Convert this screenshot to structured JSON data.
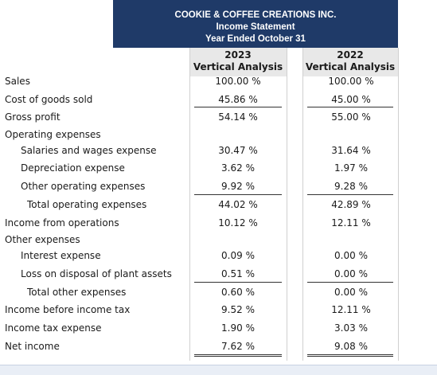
{
  "header": {
    "company": "COOKIE & COFFEE CREATIONS INC.",
    "statement": "Income Statement",
    "period": "Year Ended October 31"
  },
  "columns": [
    {
      "year": "2023",
      "label": "Vertical Analysis"
    },
    {
      "year": "2022",
      "label": "Vertical Analysis"
    }
  ],
  "rows": [
    {
      "label": "Sales",
      "v2023": "100.00 %",
      "v2022": "100.00 %"
    },
    {
      "label": "Cost of goods sold",
      "v2023": "45.86 %",
      "v2022": "45.00 %"
    },
    {
      "label": "Gross profit",
      "v2023": "54.14 %",
      "v2022": "55.00 %"
    },
    {
      "label": "Operating expenses",
      "v2023": "",
      "v2022": ""
    },
    {
      "label": "Salaries and wages expense",
      "v2023": "30.47 %",
      "v2022": "31.64 %"
    },
    {
      "label": "Depreciation expense",
      "v2023": "3.62 %",
      "v2022": "1.97 %"
    },
    {
      "label": "Other operating expenses",
      "v2023": "9.92 %",
      "v2022": "9.28 %"
    },
    {
      "label": "Total operating expenses",
      "v2023": "44.02 %",
      "v2022": "42.89 %"
    },
    {
      "label": "Income from operations",
      "v2023": "10.12 %",
      "v2022": "12.11 %"
    },
    {
      "label": "Other expenses",
      "v2023": "",
      "v2022": ""
    },
    {
      "label": "Interest expense",
      "v2023": "0.09 %",
      "v2022": "0.00 %"
    },
    {
      "label": "Loss on disposal of plant assets",
      "v2023": "0.51 %",
      "v2022": "0.00 %"
    },
    {
      "label": "Total other expenses",
      "v2023": "0.60 %",
      "v2022": "0.00 %"
    },
    {
      "label": "Income before income tax",
      "v2023": "9.52 %",
      "v2022": "12.11 %"
    },
    {
      "label": "Income tax expense",
      "v2023": "1.90 %",
      "v2022": "3.03 %"
    },
    {
      "label": "Net income",
      "v2023": "7.62 %",
      "v2022": "9.08 %"
    }
  ],
  "colors": {
    "header_bg": "#1f3a68",
    "header_text": "#ffffff",
    "colhead_bg": "#e8e8e8"
  }
}
